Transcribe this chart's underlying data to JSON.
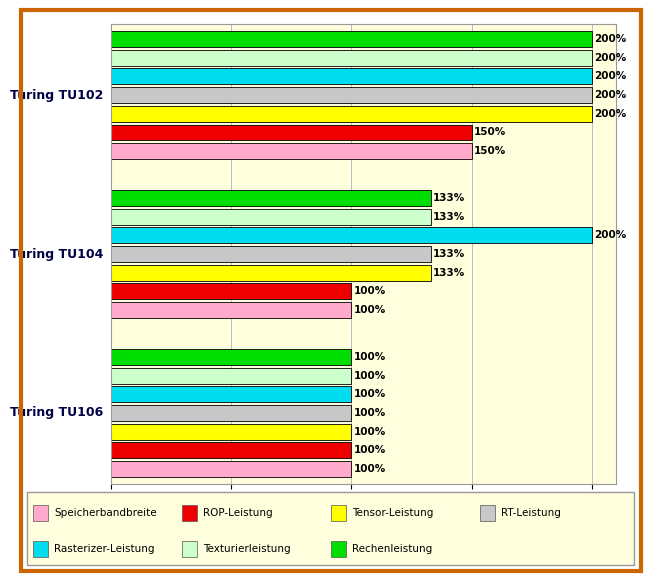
{
  "groups": [
    "Turing TU102",
    "Turing TU104",
    "Turing TU106"
  ],
  "metrics": [
    "Rechenleistung",
    "Texturierleistung",
    "Rasterizer-Leistung",
    "RT-Leistung",
    "Tensor-Leistung",
    "ROP-Leistung",
    "Speicherbandbreite"
  ],
  "colors": [
    "#00dd00",
    "#ccffcc",
    "#00ddee",
    "#c8c8c8",
    "#ffff00",
    "#ee0000",
    "#ffaacc"
  ],
  "values": {
    "Turing TU102": [
      200,
      200,
      200,
      200,
      200,
      150,
      150
    ],
    "Turing TU104": [
      133,
      133,
      200,
      133,
      133,
      100,
      100
    ],
    "Turing TU106": [
      100,
      100,
      100,
      100,
      100,
      100,
      100
    ]
  },
  "xlim_max": 210,
  "xtick_max": 200,
  "background_color": "#ffffdd",
  "outer_color": "#ffffff",
  "border_color": "#cc6600",
  "grid_color": "#bbbbcc",
  "legend_labels_row1": [
    "Speicherbandbreite",
    "ROP-Leistung",
    "Tensor-Leistung",
    "RT-Leistung"
  ],
  "legend_labels_row2": [
    "Rasterizer-Leistung",
    "Texturierleistung",
    "Rechenleistung"
  ],
  "legend_colors_row1": [
    "#ffaacc",
    "#ee0000",
    "#ffff00",
    "#c8c8c8"
  ],
  "legend_colors_row2": [
    "#00ddee",
    "#ccffcc",
    "#00dd00"
  ]
}
